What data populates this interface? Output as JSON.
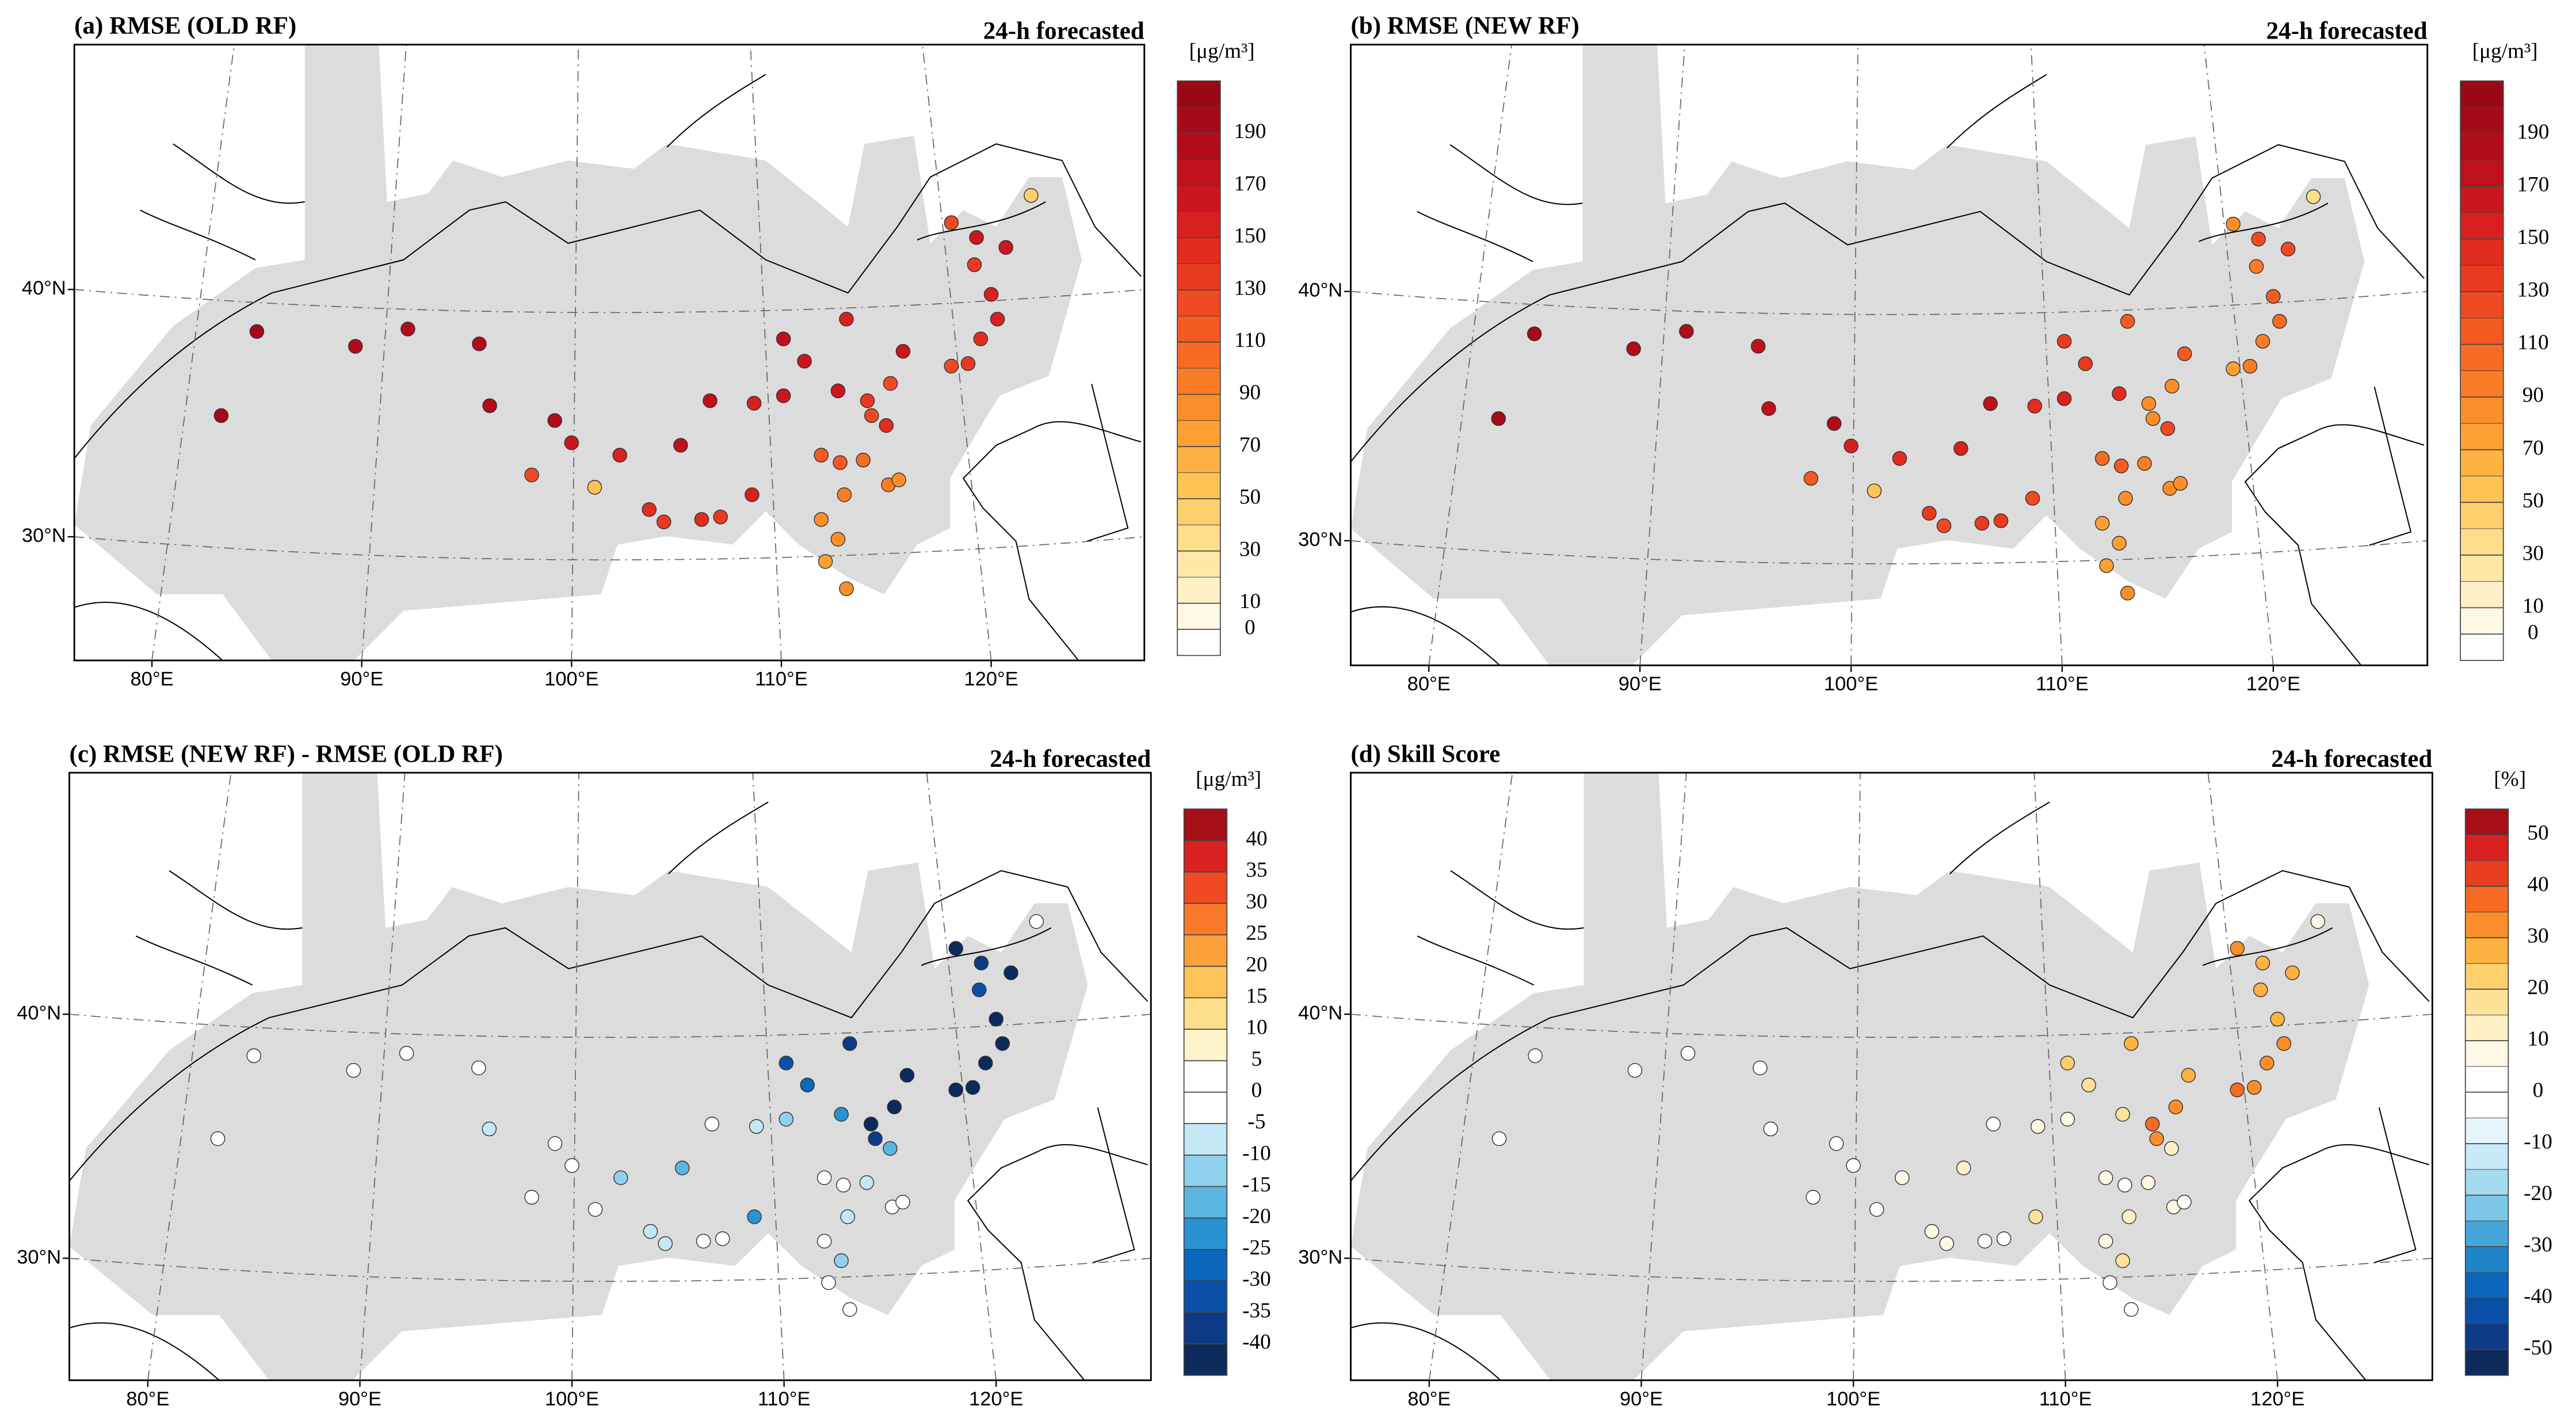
{
  "chart_data": [
    {
      "type": "map",
      "title": "(a) RMSE (OLD RF)",
      "subtitle": "24-h forecasted",
      "colorbar_label": "[μg/m³]",
      "x": [
        83.3,
        85.0,
        89.7,
        92.2,
        95.6,
        96.1,
        99.2,
        98.1,
        101.1,
        100.0,
        102.3,
        103.7,
        104.4,
        105.2,
        106.2,
        107.1,
        108.6,
        106.6,
        108.7,
        110.1,
        110.1,
        111.1,
        113.1,
        112.7,
        114.1,
        114.3,
        115.0,
        115.2,
        115.8,
        118.1,
        119.3,
        120.7,
        120.0,
        120.3,
        119.5,
        118.9,
        118.1,
        121.9,
        111.9,
        112.8,
        113.0,
        111.9,
        112.7,
        112.1,
        113.1,
        115.1,
        115.6,
        113.9,
        119.2
      ],
      "y": [
        34.9,
        38.3,
        37.7,
        38.4,
        37.8,
        35.3,
        34.7,
        32.5,
        32.0,
        33.8,
        33.3,
        31.1,
        30.6,
        33.7,
        30.7,
        30.8,
        31.7,
        35.5,
        35.4,
        35.7,
        38.0,
        37.1,
        38.8,
        35.9,
        35.5,
        34.9,
        34.5,
        36.2,
        37.5,
        42.7,
        42.1,
        41.7,
        39.8,
        38.8,
        38.0,
        37.0,
        36.9,
        43.8,
        33.3,
        33.0,
        31.7,
        30.7,
        29.9,
        29.0,
        27.9,
        32.1,
        32.3,
        33.1,
        41.0
      ],
      "values": [
        190,
        190,
        185,
        185,
        180,
        180,
        185,
        120,
        55,
        160,
        155,
        140,
        130,
        170,
        140,
        135,
        150,
        175,
        155,
        165,
        170,
        160,
        150,
        165,
        130,
        125,
        140,
        125,
        160,
        125,
        160,
        165,
        155,
        150,
        140,
        135,
        120,
        40,
        110,
        115,
        90,
        80,
        85,
        75,
        85,
        90,
        85,
        100,
        130
      ],
      "xlim": [
        76.3,
        127.3
      ],
      "ylim": [
        25.0,
        49.9
      ],
      "xticks": [
        {
          "value": 80,
          "label": "80°E"
        },
        {
          "value": 90,
          "label": "90°E"
        },
        {
          "value": 100,
          "label": "100°E"
        },
        {
          "value": 110,
          "label": "110°E"
        },
        {
          "value": 120,
          "label": "120°E"
        }
      ],
      "yticks": [
        {
          "value": 30,
          "label": "30°N"
        },
        {
          "value": 40,
          "label": "40°N"
        }
      ],
      "grid": true,
      "colorbar": {
        "lim": [
          -10,
          210
        ],
        "ticks": [
          0,
          10,
          30,
          50,
          70,
          90,
          110,
          130,
          150,
          170,
          190
        ],
        "colors": [
          "#ffffff",
          "#fff8e5",
          "#fff0c8",
          "#ffe7a8",
          "#ffdd8a",
          "#fed06d",
          "#fec255",
          "#fdb242",
          "#fda034",
          "#fc8e2a",
          "#fb7c26",
          "#f86b23",
          "#f45a22",
          "#ef4a21",
          "#e93a20",
          "#e22c1f",
          "#d82020",
          "#cc161e",
          "#bf101c",
          "#b20c1a",
          "#a50a18",
          "#990817"
        ]
      }
    },
    {
      "type": "map",
      "title": "(b) RMSE (NEW RF)",
      "subtitle": "24-h forecasted",
      "colorbar_label": "[μg/m³]",
      "x": [
        83.3,
        85.0,
        89.7,
        92.2,
        95.6,
        96.1,
        99.2,
        98.1,
        101.1,
        100.0,
        102.3,
        103.7,
        104.4,
        105.2,
        106.2,
        107.1,
        108.6,
        106.6,
        108.7,
        110.1,
        110.1,
        111.1,
        113.1,
        112.7,
        114.1,
        114.3,
        115.0,
        115.2,
        115.8,
        118.1,
        119.3,
        120.7,
        120.0,
        120.3,
        119.5,
        118.9,
        118.1,
        121.9,
        111.9,
        112.8,
        113.0,
        111.9,
        112.7,
        112.1,
        113.1,
        115.1,
        115.6,
        113.9,
        119.2
      ],
      "y": [
        34.9,
        38.3,
        37.7,
        38.4,
        37.8,
        35.3,
        34.7,
        32.5,
        32.0,
        33.8,
        33.3,
        31.1,
        30.6,
        33.7,
        30.7,
        30.8,
        31.7,
        35.5,
        35.4,
        35.7,
        38.0,
        37.1,
        38.8,
        35.9,
        35.5,
        34.9,
        34.5,
        36.2,
        37.5,
        42.7,
        42.1,
        41.7,
        39.8,
        38.8,
        38.0,
        37.0,
        36.9,
        43.8,
        33.3,
        33.0,
        31.7,
        30.7,
        29.9,
        29.0,
        27.9,
        32.1,
        32.3,
        33.1,
        41.0
      ],
      "values": [
        190,
        190,
        186,
        185,
        179,
        172,
        187,
        117,
        53,
        155,
        143,
        130,
        122,
        150,
        135,
        132,
        128,
        172,
        145,
        153,
        135,
        132,
        112,
        140,
        85,
        85,
        120,
        83,
        116,
        83,
        120,
        120,
        113,
        105,
        96,
        90,
        78,
        38,
        105,
        112,
        80,
        75,
        70,
        72,
        83,
        85,
        82,
        92,
        95
      ],
      "xlim": [
        76.3,
        127.3
      ],
      "ylim": [
        25.0,
        49.9
      ],
      "xticks": [
        {
          "value": 80,
          "label": "80°E"
        },
        {
          "value": 90,
          "label": "90°E"
        },
        {
          "value": 100,
          "label": "100°E"
        },
        {
          "value": 110,
          "label": "110°E"
        },
        {
          "value": 120,
          "label": "120°E"
        }
      ],
      "yticks": [
        {
          "value": 30,
          "label": "30°N"
        },
        {
          "value": 40,
          "label": "40°N"
        }
      ],
      "grid": true,
      "colorbar": {
        "lim": [
          -10,
          210
        ],
        "ticks": [
          0,
          10,
          30,
          50,
          70,
          90,
          110,
          130,
          150,
          170,
          190
        ],
        "colors": [
          "#ffffff",
          "#fff8e5",
          "#fff0c8",
          "#ffe7a8",
          "#ffdd8a",
          "#fed06d",
          "#fec255",
          "#fdb242",
          "#fda034",
          "#fc8e2a",
          "#fb7c26",
          "#f86b23",
          "#f45a22",
          "#ef4a21",
          "#e93a20",
          "#e22c1f",
          "#d82020",
          "#cc161e",
          "#bf101c",
          "#b20c1a",
          "#a50a18",
          "#990817"
        ]
      }
    },
    {
      "type": "map",
      "title": "(c) RMSE (NEW RF) - RMSE (OLD RF)",
      "subtitle": "24-h forecasted",
      "colorbar_label": "[μg/m³]",
      "x": [
        83.3,
        85.0,
        89.7,
        92.2,
        95.6,
        96.1,
        99.2,
        98.1,
        101.1,
        100.0,
        102.3,
        103.7,
        104.4,
        105.2,
        106.2,
        107.1,
        108.6,
        106.6,
        108.7,
        110.1,
        110.1,
        111.1,
        113.1,
        112.7,
        114.1,
        114.3,
        115.0,
        115.2,
        115.8,
        118.1,
        119.3,
        120.7,
        120.0,
        120.3,
        119.5,
        118.9,
        118.1,
        121.9,
        111.9,
        112.8,
        113.0,
        111.9,
        112.7,
        112.1,
        113.1,
        115.1,
        115.6,
        113.9,
        119.2
      ],
      "y": [
        34.9,
        38.3,
        37.7,
        38.4,
        37.8,
        35.3,
        34.7,
        32.5,
        32.0,
        33.8,
        33.3,
        31.1,
        30.6,
        33.7,
        30.7,
        30.8,
        31.7,
        35.5,
        35.4,
        35.7,
        38.0,
        37.1,
        38.8,
        35.9,
        35.5,
        34.9,
        34.5,
        36.2,
        37.5,
        42.7,
        42.1,
        41.7,
        39.8,
        38.8,
        38.0,
        37.0,
        36.9,
        43.8,
        33.3,
        33.0,
        31.7,
        30.7,
        29.9,
        29.0,
        27.9,
        32.1,
        32.3,
        33.1,
        41.0
      ],
      "values": [
        0,
        0,
        1,
        0,
        -1,
        -8,
        2,
        -3,
        -2,
        -5,
        -12,
        -10,
        -8,
        -20,
        -5,
        -3,
        -22,
        -3,
        -10,
        -12,
        -35,
        -28,
        -38,
        -25,
        -45,
        -40,
        -20,
        -42,
        -44,
        -42,
        -40,
        -45,
        -42,
        -45,
        -44,
        -45,
        -42,
        -2,
        -5,
        -3,
        -10,
        -5,
        -15,
        -3,
        -2,
        -5,
        -3,
        -8,
        -35
      ],
      "xlim": [
        76.3,
        127.3
      ],
      "ylim": [
        25.0,
        49.9
      ],
      "xticks": [
        {
          "value": 80,
          "label": "80°E"
        },
        {
          "value": 90,
          "label": "90°E"
        },
        {
          "value": 100,
          "label": "100°E"
        },
        {
          "value": 110,
          "label": "110°E"
        },
        {
          "value": 120,
          "label": "120°E"
        }
      ],
      "yticks": [
        {
          "value": 30,
          "label": "30°N"
        },
        {
          "value": 40,
          "label": "40°N"
        }
      ],
      "grid": true,
      "colorbar": {
        "lim": [
          -45,
          45
        ],
        "ticks": [
          -40,
          -35,
          -30,
          -25,
          -20,
          -15,
          -10,
          -5,
          0,
          5,
          10,
          15,
          20,
          25,
          30,
          35,
          40
        ],
        "colors": [
          "#0c2a5b",
          "#0d3b85",
          "#0b50a8",
          "#0a67bb",
          "#2a92d0",
          "#5ab6e0",
          "#8fd0ec",
          "#c5e8f6",
          "#ffffff",
          "#ffffff",
          "#fff3cc",
          "#ffe08a",
          "#fec45a",
          "#fca03a",
          "#f97a2a",
          "#ef4a22",
          "#d8221f",
          "#a50f15"
        ]
      }
    },
    {
      "type": "map",
      "title": "(d) Skill Score",
      "subtitle": "24-h forecasted",
      "colorbar_label": "[%]",
      "x": [
        83.3,
        85.0,
        89.7,
        92.2,
        95.6,
        96.1,
        99.2,
        98.1,
        101.1,
        100.0,
        102.3,
        103.7,
        104.4,
        105.2,
        106.2,
        107.1,
        108.6,
        106.6,
        108.7,
        110.1,
        110.1,
        111.1,
        113.1,
        112.7,
        114.1,
        114.3,
        115.0,
        115.2,
        115.8,
        118.1,
        119.3,
        120.7,
        120.0,
        120.3,
        119.5,
        118.9,
        118.1,
        121.9,
        111.9,
        112.8,
        113.0,
        111.9,
        112.7,
        112.1,
        113.1,
        115.1,
        115.6,
        113.9,
        119.2
      ],
      "y": [
        34.9,
        38.3,
        37.7,
        38.4,
        37.8,
        35.3,
        34.7,
        32.5,
        32.0,
        33.8,
        33.3,
        31.1,
        30.6,
        33.7,
        30.7,
        30.8,
        31.7,
        35.5,
        35.4,
        35.7,
        38.0,
        37.1,
        38.8,
        35.9,
        35.5,
        34.9,
        34.5,
        36.2,
        37.5,
        42.7,
        42.1,
        41.7,
        39.8,
        38.8,
        38.0,
        37.0,
        36.9,
        43.8,
        33.3,
        33.0,
        31.7,
        30.7,
        29.9,
        29.0,
        27.9,
        32.1,
        32.3,
        33.1,
        41.0
      ],
      "values": [
        0,
        0,
        -1,
        0,
        1,
        4,
        -1,
        3,
        4,
        3,
        8,
        7,
        6,
        12,
        4,
        2,
        15,
        2,
        6,
        7,
        21,
        18,
        25,
        15,
        35,
        32,
        14,
        34,
        28,
        34,
        25,
        27,
        27,
        30,
        31,
        33,
        35,
        5,
        5,
        3,
        11,
        6,
        18,
        4,
        2,
        6,
        4,
        8,
        27
      ],
      "xlim": [
        76.3,
        127.3
      ],
      "ylim": [
        25.0,
        49.9
      ],
      "xticks": [
        {
          "value": 80,
          "label": "80°E"
        },
        {
          "value": 90,
          "label": "90°E"
        },
        {
          "value": 100,
          "label": "100°E"
        },
        {
          "value": 110,
          "label": "110°E"
        },
        {
          "value": 120,
          "label": "120°E"
        }
      ],
      "yticks": [
        {
          "value": 30,
          "label": "30°N"
        },
        {
          "value": 40,
          "label": "40°N"
        }
      ],
      "grid": true,
      "colorbar": {
        "lim": [
          -55,
          55
        ],
        "ticks": [
          -50,
          -40,
          -30,
          -20,
          -10,
          0,
          10,
          20,
          30,
          40,
          50
        ],
        "colors": [
          "#0c2a5b",
          "#0d3b85",
          "#0b50a8",
          "#0a67bb",
          "#1f85c8",
          "#46a6da",
          "#7cc7e8",
          "#a6daf1",
          "#c9eaf7",
          "#e6f5fb",
          "#ffffff",
          "#ffffff",
          "#fff8e5",
          "#fff0c8",
          "#ffe29a",
          "#fed06d",
          "#fdb242",
          "#fb8e2a",
          "#f56b23",
          "#ea3e20",
          "#d8201f",
          "#a50f15"
        ]
      }
    }
  ]
}
